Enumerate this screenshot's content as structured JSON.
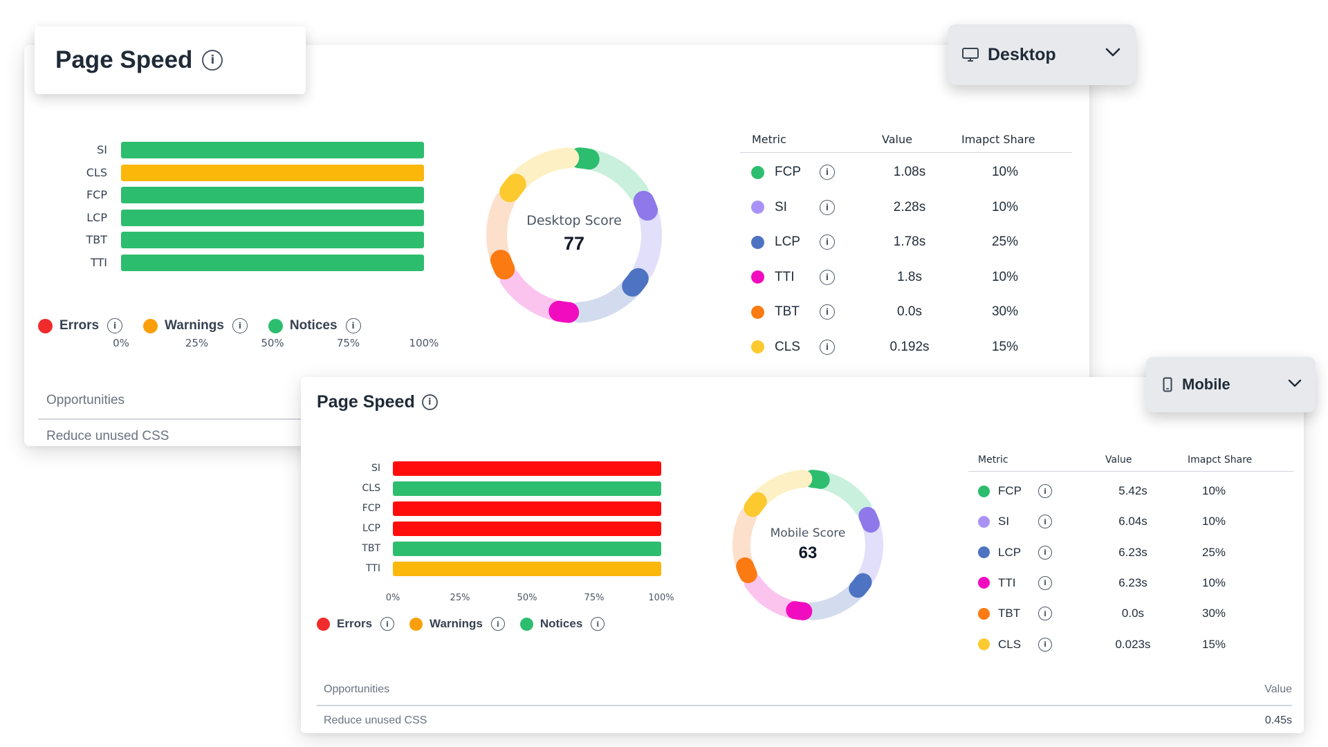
{
  "desktop": {
    "title": "Page Speed",
    "dropdown_label": "Desktop",
    "score_label": "Desktop Score",
    "score": "77",
    "bars": [
      {
        "label": "SI",
        "value": 100,
        "color": "#2dbd6e"
      },
      {
        "label": "CLS",
        "value": 100,
        "color": "#fbb70a"
      },
      {
        "label": "FCP",
        "value": 100,
        "color": "#2dbd6e"
      },
      {
        "label": "LCP",
        "value": 100,
        "color": "#2dbd6e"
      },
      {
        "label": "TBT",
        "value": 100,
        "color": "#2dbd6e"
      },
      {
        "label": "TTI",
        "value": 100,
        "color": "#2dbd6e"
      }
    ],
    "ticks": [
      "0%",
      "25%",
      "50%",
      "75%",
      "100%"
    ],
    "legend": [
      {
        "label": "Errors",
        "color": "#ef2b2b"
      },
      {
        "label": "Warnings",
        "color": "#fa9f0a"
      },
      {
        "label": "Notices",
        "color": "#2dbd6e"
      }
    ],
    "table_headers": {
      "metric": "Metric",
      "value": "Value",
      "impact": "Imapct Share"
    },
    "metrics": [
      {
        "name": "FCP",
        "value": "1.08s",
        "impact": "10%",
        "color": "#2dbd6e"
      },
      {
        "name": "SI",
        "value": "2.28s",
        "impact": "10%",
        "color": "#a992f5"
      },
      {
        "name": "LCP",
        "value": "1.78s",
        "impact": "25%",
        "color": "#4e73c2"
      },
      {
        "name": "TTI",
        "value": "1.8s",
        "impact": "10%",
        "color": "#f20cbf"
      },
      {
        "name": "TBT",
        "value": "0.0s",
        "impact": "30%",
        "color": "#fb7a12"
      },
      {
        "name": "CLS",
        "value": "0.192s",
        "impact": "15%",
        "color": "#fcc92f"
      }
    ],
    "opportunities_header": "Opportunities",
    "opportunity_item": "Reduce unused CSS"
  },
  "mobile": {
    "title": "Page Speed",
    "dropdown_label": "Mobile",
    "score_label": "Mobile Score",
    "score": "63",
    "bars": [
      {
        "label": "SI",
        "value": 100,
        "color": "#ff0d0d"
      },
      {
        "label": "CLS",
        "value": 100,
        "color": "#2dbd6e"
      },
      {
        "label": "FCP",
        "value": 100,
        "color": "#ff0d0d"
      },
      {
        "label": "LCP",
        "value": 100,
        "color": "#ff0d0d"
      },
      {
        "label": "TBT",
        "value": 100,
        "color": "#2dbd6e"
      },
      {
        "label": "TTI",
        "value": 100,
        "color": "#fbb70a"
      }
    ],
    "ticks": [
      "0%",
      "25%",
      "50%",
      "75%",
      "100%"
    ],
    "legend": [
      {
        "label": "Errors",
        "color": "#ef2b2b"
      },
      {
        "label": "Warnings",
        "color": "#fa9f0a"
      },
      {
        "label": "Notices",
        "color": "#2dbd6e"
      }
    ],
    "table_headers": {
      "metric": "Metric",
      "value": "Value",
      "impact": "Imapct Share"
    },
    "metrics": [
      {
        "name": "FCP",
        "value": "5.42s",
        "impact": "10%",
        "color": "#2dbd6e"
      },
      {
        "name": "SI",
        "value": "6.04s",
        "impact": "10%",
        "color": "#a992f5"
      },
      {
        "name": "LCP",
        "value": "6.23s",
        "impact": "25%",
        "color": "#4e73c2"
      },
      {
        "name": "TTI",
        "value": "6.23s",
        "impact": "10%",
        "color": "#f20cbf"
      },
      {
        "name": "TBT",
        "value": "0.0s",
        "impact": "30%",
        "color": "#fb7a12"
      },
      {
        "name": "CLS",
        "value": "0.023s",
        "impact": "15%",
        "color": "#fcc92f"
      }
    ],
    "opportunities_header": "Opportunities",
    "opportunities_value_header": "Value",
    "opportunity_item": "Reduce unused CSS",
    "opportunity_value": "0.45s"
  },
  "donut_segments": [
    {
      "name": "FCP",
      "light": "#c9f0dc",
      "accent": "#2dbd6e"
    },
    {
      "name": "SI",
      "light": "#e2dffb",
      "accent": "#8e78ea"
    },
    {
      "name": "LCP",
      "light": "#d3dcee",
      "accent": "#4e73c2"
    },
    {
      "name": "TTI",
      "light": "#fbc4ef",
      "accent": "#f20cbf"
    },
    {
      "name": "TBT",
      "light": "#fde0cc",
      "accent": "#fb7a12"
    },
    {
      "name": "CLS",
      "light": "#fdf0c4",
      "accent": "#fcc92f"
    }
  ],
  "icons": {
    "info": "info-icon",
    "desktop": "monitor-icon",
    "mobile": "phone-icon",
    "chevron": "chevron-down-icon"
  }
}
